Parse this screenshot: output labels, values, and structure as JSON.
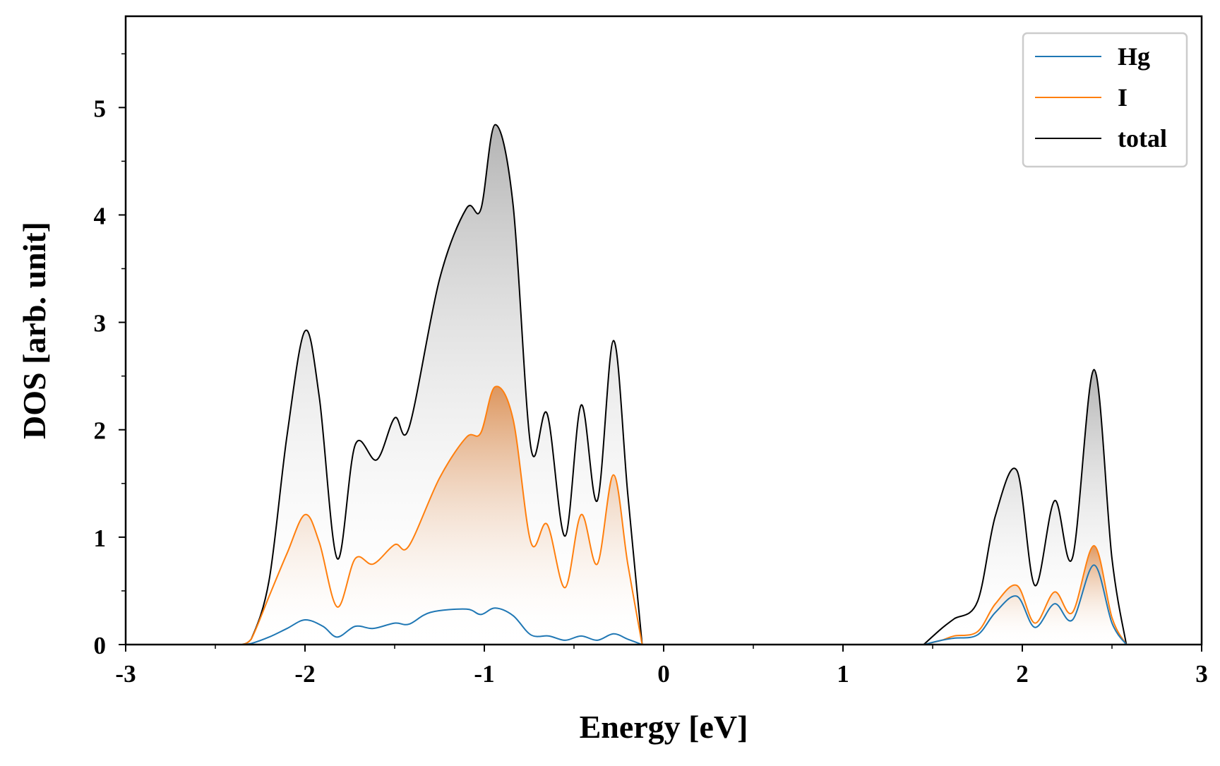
{
  "chart_data": {
    "type": "area",
    "title": "",
    "xlabel": "Energy [eV]",
    "ylabel": "DOS [arb. unit]",
    "xlim": [
      -3,
      3
    ],
    "ylim": [
      0,
      5.85
    ],
    "x_ticks": [
      -3,
      -2,
      -1,
      0,
      1,
      2,
      3
    ],
    "x_tick_labels": [
      "-3",
      "-2",
      "-1",
      "0",
      "1",
      "2",
      "3"
    ],
    "y_ticks": [
      0,
      1,
      2,
      3,
      4,
      5
    ],
    "y_tick_labels": [
      "0",
      "1",
      "2",
      "3",
      "4",
      "5"
    ],
    "grid": false,
    "legend_position": "top-right",
    "legend": [
      "Hg",
      "I",
      "total"
    ],
    "series": [
      {
        "name": "Hg",
        "color": "#1f77b4",
        "fill": false,
        "points": [
          [
            -2.35,
            0
          ],
          [
            -2.3,
            0.01
          ],
          [
            -2.2,
            0.07
          ],
          [
            -2.1,
            0.15
          ],
          [
            -2.0,
            0.23
          ],
          [
            -1.9,
            0.17
          ],
          [
            -1.82,
            0.07
          ],
          [
            -1.72,
            0.17
          ],
          [
            -1.62,
            0.15
          ],
          [
            -1.5,
            0.2
          ],
          [
            -1.42,
            0.19
          ],
          [
            -1.3,
            0.3
          ],
          [
            -1.1,
            0.33
          ],
          [
            -1.02,
            0.28
          ],
          [
            -0.94,
            0.34
          ],
          [
            -0.84,
            0.27
          ],
          [
            -0.74,
            0.09
          ],
          [
            -0.64,
            0.08
          ],
          [
            -0.55,
            0.04
          ],
          [
            -0.46,
            0.08
          ],
          [
            -0.37,
            0.04
          ],
          [
            -0.28,
            0.1
          ],
          [
            -0.2,
            0.05
          ],
          [
            -0.12,
            0.0
          ],
          [
            1.45,
            0.0
          ],
          [
            1.55,
            0.04
          ],
          [
            1.62,
            0.06
          ],
          [
            1.75,
            0.09
          ],
          [
            1.85,
            0.3
          ],
          [
            1.97,
            0.45
          ],
          [
            2.07,
            0.16
          ],
          [
            2.18,
            0.38
          ],
          [
            2.28,
            0.23
          ],
          [
            2.4,
            0.74
          ],
          [
            2.5,
            0.2
          ],
          [
            2.58,
            0.0
          ]
        ]
      },
      {
        "name": "I",
        "color": "#ff7f0e",
        "fill": true,
        "points": [
          [
            -2.35,
            0
          ],
          [
            -2.3,
            0.05
          ],
          [
            -2.2,
            0.45
          ],
          [
            -2.1,
            0.85
          ],
          [
            -2.0,
            1.21
          ],
          [
            -1.92,
            0.95
          ],
          [
            -1.82,
            0.35
          ],
          [
            -1.72,
            0.8
          ],
          [
            -1.62,
            0.75
          ],
          [
            -1.5,
            0.93
          ],
          [
            -1.42,
            0.92
          ],
          [
            -1.25,
            1.55
          ],
          [
            -1.1,
            1.93
          ],
          [
            -1.02,
            1.97
          ],
          [
            -0.94,
            2.4
          ],
          [
            -0.84,
            2.1
          ],
          [
            -0.74,
            0.95
          ],
          [
            -0.65,
            1.12
          ],
          [
            -0.55,
            0.53
          ],
          [
            -0.46,
            1.21
          ],
          [
            -0.37,
            0.75
          ],
          [
            -0.28,
            1.58
          ],
          [
            -0.2,
            0.75
          ],
          [
            -0.12,
            0.0
          ],
          [
            1.45,
            0.0
          ],
          [
            1.55,
            0.04
          ],
          [
            1.62,
            0.08
          ],
          [
            1.75,
            0.12
          ],
          [
            1.85,
            0.38
          ],
          [
            1.97,
            0.55
          ],
          [
            2.07,
            0.2
          ],
          [
            2.18,
            0.49
          ],
          [
            2.28,
            0.3
          ],
          [
            2.4,
            0.92
          ],
          [
            2.5,
            0.25
          ],
          [
            2.58,
            0.0
          ]
        ]
      },
      {
        "name": "total",
        "color": "#000000",
        "fill": true,
        "points": [
          [
            -2.35,
            0
          ],
          [
            -2.3,
            0.05
          ],
          [
            -2.2,
            0.6
          ],
          [
            -2.1,
            1.95
          ],
          [
            -2.0,
            2.92
          ],
          [
            -1.92,
            2.3
          ],
          [
            -1.82,
            0.8
          ],
          [
            -1.72,
            1.86
          ],
          [
            -1.6,
            1.72
          ],
          [
            -1.5,
            2.11
          ],
          [
            -1.42,
            2.02
          ],
          [
            -1.25,
            3.4
          ],
          [
            -1.1,
            4.06
          ],
          [
            -1.02,
            4.05
          ],
          [
            -0.94,
            4.84
          ],
          [
            -0.84,
            4.1
          ],
          [
            -0.74,
            1.83
          ],
          [
            -0.65,
            2.15
          ],
          [
            -0.55,
            1.01
          ],
          [
            -0.46,
            2.23
          ],
          [
            -0.37,
            1.34
          ],
          [
            -0.28,
            2.83
          ],
          [
            -0.2,
            1.4
          ],
          [
            -0.12,
            0.0
          ],
          [
            1.45,
            0.0
          ],
          [
            1.55,
            0.15
          ],
          [
            1.62,
            0.24
          ],
          [
            1.75,
            0.4
          ],
          [
            1.85,
            1.2
          ],
          [
            1.97,
            1.62
          ],
          [
            2.07,
            0.55
          ],
          [
            2.18,
            1.34
          ],
          [
            2.28,
            0.81
          ],
          [
            2.4,
            2.56
          ],
          [
            2.5,
            0.8
          ],
          [
            2.58,
            0.0
          ]
        ]
      }
    ]
  }
}
